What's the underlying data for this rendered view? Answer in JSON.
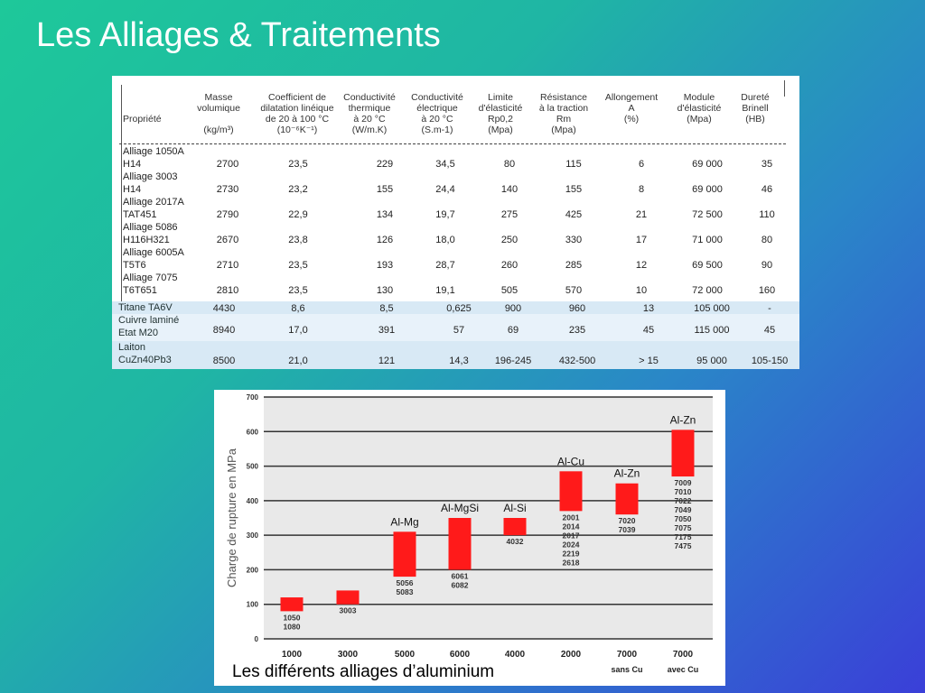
{
  "slide": {
    "title": "Les Alliages & Traitements"
  },
  "table": {
    "headers": [
      {
        "key": "prop",
        "text": "\n\nPropriété"
      },
      {
        "key": "masse",
        "text": "Masse\nvolumique\n\n(kg/m³)"
      },
      {
        "key": "dil",
        "text": "Coefficient de\ndilatation linéique\nde 20 à 100 °C\n(10⁻⁶K⁻¹)"
      },
      {
        "key": "cth",
        "text": "Conductivité\nthermique\nà 20 °C\n(W/m.K)"
      },
      {
        "key": "cel",
        "text": "Conductivité\nélectrique\nà 20 °C\n(S.m-1)"
      },
      {
        "key": "lim",
        "text": "Limite\nd'élasticité\nRp0,2\n(Mpa)"
      },
      {
        "key": "res",
        "text": "Résistance\nà la traction\nRm\n(Mpa)"
      },
      {
        "key": "all",
        "text": "Allongement\nA\n(%)"
      },
      {
        "key": "mod",
        "text": "Module\nd'élasticité\n(Mpa)"
      },
      {
        "key": "dur",
        "text": "Dureté\nBrinell\n(HB)"
      }
    ],
    "upper_rows": [
      {
        "name": [
          "Alliage 1050A",
          "H14"
        ],
        "values": [
          "2700",
          "23,5",
          "229",
          "34,5",
          "80",
          "115",
          "6",
          "69 000",
          "35"
        ]
      },
      {
        "name": [
          "Alliage 3003",
          "H14"
        ],
        "values": [
          "2730",
          "23,2",
          "155",
          "24,4",
          "140",
          "155",
          "8",
          "69 000",
          "46"
        ]
      },
      {
        "name": [
          "Alliage 2017A",
          "TAT451"
        ],
        "values": [
          "2790",
          "22,9",
          "134",
          "19,7",
          "275",
          "425",
          "21",
          "72 500",
          "110"
        ]
      },
      {
        "name": [
          "Alliage 5086",
          "H116H321"
        ],
        "values": [
          "2670",
          "23,8",
          "126",
          "18,0",
          "250",
          "330",
          "17",
          "71 000",
          "80"
        ]
      },
      {
        "name": [
          "Alliage 6005A",
          "T5T6"
        ],
        "values": [
          "2710",
          "23,5",
          "193",
          "28,7",
          "260",
          "285",
          "12",
          "69 500",
          "90"
        ]
      },
      {
        "name": [
          "Alliage 7075",
          "T6T651"
        ],
        "values": [
          "2810",
          "23,5",
          "130",
          "19,1",
          "505",
          "570",
          "10",
          "72 000",
          "160"
        ]
      }
    ],
    "lower_rows": [
      {
        "name": [
          "Titane TA6V"
        ],
        "values": [
          "4430",
          "8,6",
          "8,5",
          "0,625",
          "900",
          "960",
          "13",
          "105 000",
          "-"
        ]
      },
      {
        "name": [
          "Cuivre laminé",
          "Etat M20"
        ],
        "values": [
          "8940",
          "17,0",
          "391",
          "57",
          "69",
          "235",
          "45",
          "115 000",
          "45"
        ]
      },
      {
        "name": [
          "Laiton",
          "CuZn40Pb3"
        ],
        "values": [
          "8500",
          "21,0",
          "121",
          "14,3",
          "196-245",
          "432-500",
          "> 15",
          "95 000",
          "105-150"
        ]
      }
    ]
  },
  "chart_data": {
    "type": "bar",
    "ylabel": "Charge de rupture en MPa",
    "ylim": [
      0,
      700
    ],
    "yticks": [
      0,
      100,
      200,
      300,
      400,
      500,
      600,
      700
    ],
    "grid": true,
    "categories": [
      {
        "line1": "1000",
        "line2": ""
      },
      {
        "line1": "3000",
        "line2": ""
      },
      {
        "line1": "5000",
        "line2": ""
      },
      {
        "line1": "6000",
        "line2": ""
      },
      {
        "line1": "4000",
        "line2": ""
      },
      {
        "line1": "2000",
        "line2": ""
      },
      {
        "line1": "7000",
        "line2": "sans Cu"
      },
      {
        "line1": "7000",
        "line2": "avec Cu"
      }
    ],
    "ranges": [
      {
        "low": 80,
        "high": 120,
        "family": "",
        "alloys": [
          "1050",
          "1080"
        ]
      },
      {
        "low": 100,
        "high": 140,
        "family": "",
        "alloys": [
          "3003"
        ]
      },
      {
        "low": 180,
        "high": 310,
        "family": "Al-Mg",
        "alloys": [
          "5056",
          "5083"
        ]
      },
      {
        "low": 200,
        "high": 350,
        "family": "Al-MgSi",
        "alloys": [
          "6061",
          "6082"
        ]
      },
      {
        "low": 300,
        "high": 350,
        "family": "Al-Si",
        "alloys": [
          "4032"
        ]
      },
      {
        "low": 370,
        "high": 485,
        "family": "Al-Cu",
        "alloys": [
          "2001",
          "2014",
          "2017",
          "2024",
          "2219",
          "2618"
        ]
      },
      {
        "low": 360,
        "high": 450,
        "family": "Al-Zn",
        "alloys": [
          "7020",
          "7039"
        ]
      },
      {
        "low": 470,
        "high": 605,
        "family": "Al-Zn",
        "alloys": [
          "7009",
          "7010",
          "7022",
          "7049",
          "7050",
          "7075",
          "7175",
          "7475"
        ]
      }
    ],
    "bar_color": "#ff1a1a",
    "caption": "Les différents alliages d’aluminium"
  }
}
